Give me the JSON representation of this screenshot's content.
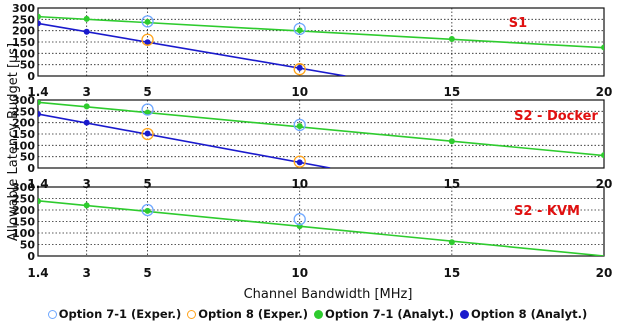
{
  "chart_data": {
    "type": "line",
    "ylabel": "Allowable Latency Budget [μs]",
    "xlabel": "Channel Bandwidth [MHz]",
    "x_ticks": [
      "1.4",
      "3",
      "5",
      "10",
      "15",
      "20"
    ],
    "y_ticks": [
      "300",
      "250",
      "200",
      "150",
      "100",
      "50",
      "0"
    ],
    "xlim": [
      1.4,
      20
    ],
    "ylim": [
      0,
      300
    ],
    "grid": true,
    "legend_position": "bottom",
    "legend": [
      {
        "label": "Option 7-1 (Exper.)",
        "marker": "open-circle",
        "color": "#6fa8ff"
      },
      {
        "label": "Option 8 (Exper.)",
        "marker": "open-circle",
        "color": "#ffa31a"
      },
      {
        "label": "Option 7-1 (Analyt.)",
        "marker": "filled-circle",
        "color": "#2ecb2e"
      },
      {
        "label": "Option 8 (Analyt.)",
        "marker": "filled-circle",
        "color": "#1a1acc"
      }
    ],
    "panels": [
      {
        "label": "S1",
        "series": [
          {
            "name": "Option 7-1 (Analyt.)",
            "color": "#2ecb2e",
            "line": [
              [
                1.4,
                262
              ],
              [
                20,
                125
              ]
            ],
            "x": [
              1.4,
              3,
              5,
              10,
              15,
              20
            ],
            "y": [
              262,
              252,
              239,
              202,
              163,
              126
            ]
          },
          {
            "name": "Option 8 (Analyt.)",
            "color": "#1a1acc",
            "line": [
              [
                1.4,
                232
              ],
              [
                11.5,
                0
              ]
            ],
            "x": [
              1.4,
              3,
              5,
              10
            ],
            "y": [
              232,
              195,
              149,
              36
            ]
          },
          {
            "name": "Option 7-1 (Exper.)",
            "color": "#6fa8ff",
            "x": [
              5,
              10
            ],
            "y": [
              241,
              208
            ]
          },
          {
            "name": "Option 8 (Exper.)",
            "color": "#ffa31a",
            "x": [
              5,
              10
            ],
            "y": [
              160,
              30
            ]
          }
        ]
      },
      {
        "label": "S2 - Docker",
        "series": [
          {
            "name": "Option 7-1 (Analyt.)",
            "color": "#2ecb2e",
            "line": [
              [
                1.4,
                290
              ],
              [
                20,
                55
              ]
            ],
            "x": [
              1.4,
              3,
              5,
              10,
              15,
              20
            ],
            "y": [
              290,
              272,
              245,
              185,
              118,
              57
            ]
          },
          {
            "name": "Option 8 (Analyt.)",
            "color": "#1a1acc",
            "line": [
              [
                1.4,
                238
              ],
              [
                11,
                0
              ]
            ],
            "x": [
              1.4,
              3,
              5,
              10
            ],
            "y": [
              238,
              200,
              152,
              25
            ]
          },
          {
            "name": "Option 7-1 (Exper.)",
            "color": "#6fa8ff",
            "x": [
              5,
              10
            ],
            "y": [
              258,
              190
            ]
          },
          {
            "name": "Option 8 (Exper.)",
            "color": "#ffa31a",
            "x": [
              5,
              10
            ],
            "y": [
              150,
              28
            ]
          }
        ]
      },
      {
        "label": "S2 - KVM",
        "series": [
          {
            "name": "Option 7-1 (Analyt.)",
            "color": "#2ecb2e",
            "line": [
              [
                1.4,
                240
              ],
              [
                20,
                0
              ]
            ],
            "x": [
              1.4,
              3,
              5,
              10,
              15
            ],
            "y": [
              238,
              220,
              196,
              130,
              60
            ]
          },
          {
            "name": "Option 7-1 (Exper.)",
            "color": "#6fa8ff",
            "x": [
              5,
              10
            ],
            "y": [
              200,
              160
            ]
          }
        ]
      }
    ]
  }
}
